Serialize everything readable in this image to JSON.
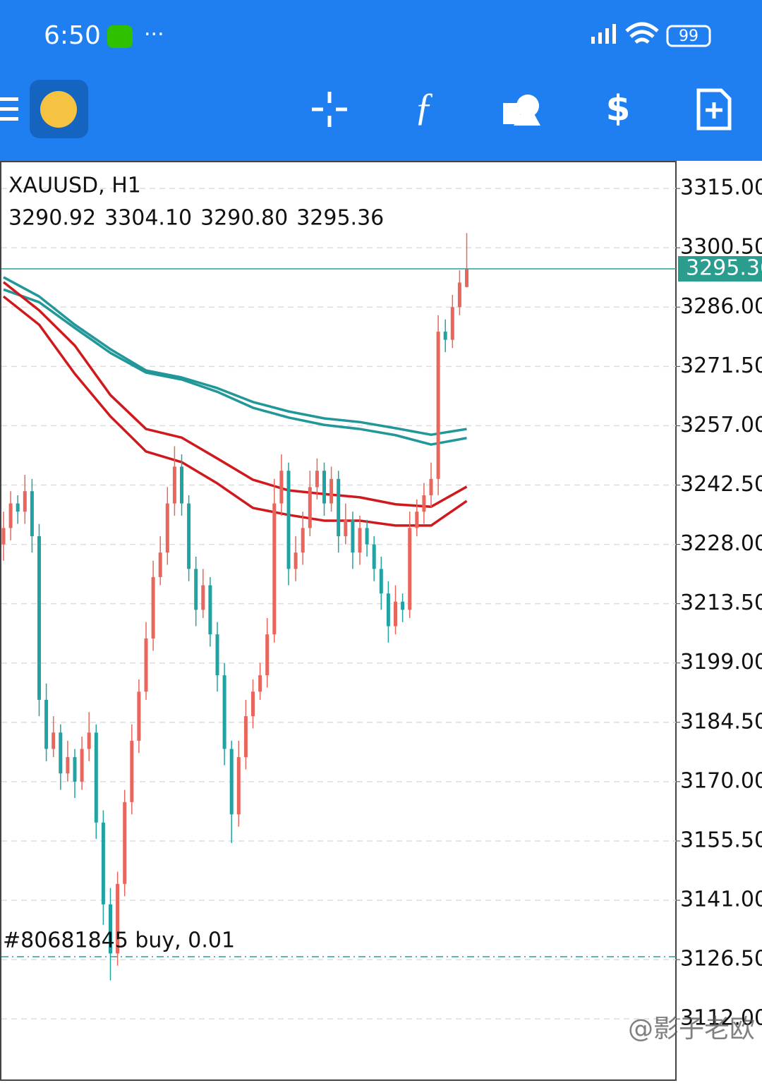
{
  "status_bar": {
    "time": "6:50",
    "battery": "99"
  },
  "chart_data": {
    "type": "candlestick",
    "title": "XAUUSD, H1",
    "header_values": [
      "3290.92",
      "3304.10",
      "3290.80",
      "3295.36"
    ],
    "up_color": "#e8665c",
    "down_color": "#22a3a3",
    "open": [
      3228,
      3232,
      3238,
      3236,
      3241,
      3230,
      3190,
      3178,
      3182,
      3172,
      3176,
      3170,
      3178,
      3182,
      3160,
      3140,
      3128,
      3145,
      3165,
      3180,
      3192,
      3205,
      3220,
      3226,
      3238,
      3247,
      3238,
      3222,
      3212,
      3218,
      3206,
      3196,
      3178,
      3162,
      3176,
      3186,
      3192,
      3196,
      3206,
      3238,
      3246,
      3222,
      3226,
      3232,
      3242,
      3246,
      3238,
      3244,
      3230,
      3234,
      3226,
      3232,
      3228,
      3222,
      3216,
      3208,
      3214,
      3212,
      3232,
      3236,
      3240,
      3244,
      3280,
      3278,
      3286,
      3290.92
    ],
    "high": [
      3236,
      3241,
      3240,
      3245,
      3244,
      3233,
      3194,
      3186,
      3184,
      3180,
      3178,
      3181,
      3187,
      3184,
      3163,
      3144,
      3148,
      3168,
      3184,
      3195,
      3209,
      3224,
      3230,
      3242,
      3252,
      3250,
      3240,
      3225,
      3222,
      3220,
      3209,
      3199,
      3180,
      3180,
      3190,
      3195,
      3199,
      3210,
      3244,
      3250,
      3248,
      3230,
      3236,
      3246,
      3249,
      3248,
      3247,
      3246,
      3238,
      3236,
      3235,
      3234,
      3230,
      3225,
      3219,
      3218,
      3216,
      3236,
      3239,
      3243,
      3248,
      3284,
      3283,
      3289,
      3295,
      3304.1
    ],
    "low": [
      3224,
      3229,
      3233,
      3233,
      3226,
      3186,
      3175,
      3176,
      3168,
      3170,
      3166,
      3168,
      3175,
      3156,
      3135,
      3121.4,
      3125,
      3142,
      3162,
      3177,
      3190,
      3202,
      3218,
      3223,
      3235,
      3235,
      3219,
      3208,
      3210,
      3203,
      3192,
      3174,
      3155,
      3159,
      3173,
      3183,
      3190,
      3193,
      3204,
      3235,
      3218,
      3219,
      3223,
      3230,
      3239,
      3235,
      3236,
      3226,
      3228,
      3222,
      3223,
      3225,
      3219,
      3212,
      3204,
      3206,
      3209,
      3210,
      3230,
      3233,
      3237,
      3240,
      3275,
      3276,
      3284,
      3290.8
    ],
    "close": [
      3232,
      3238,
      3236,
      3241,
      3230,
      3190,
      3178,
      3182,
      3172,
      3176,
      3170,
      3178,
      3182,
      3160,
      3140,
      3128,
      3145,
      3165,
      3180,
      3192,
      3205,
      3220,
      3226,
      3238,
      3247,
      3238,
      3222,
      3212,
      3218,
      3206,
      3196,
      3178,
      3162,
      3176,
      3186,
      3192,
      3196,
      3206,
      3238,
      3246,
      3222,
      3226,
      3232,
      3242,
      3246,
      3238,
      3244,
      3230,
      3234,
      3226,
      3232,
      3228,
      3222,
      3216,
      3208,
      3214,
      3212,
      3232,
      3236,
      3240,
      3244,
      3280,
      3278,
      3286,
      3292,
      3295.36
    ],
    "lines": [
      {
        "color": "#22979a",
        "x": [
          0,
          5,
          10,
          15,
          20,
          25,
          30,
          35,
          40,
          45,
          50,
          55,
          60,
          65
        ],
        "values": [
          3293.3,
          3288.6,
          3281.7,
          3275.7,
          3270.5,
          3268.8,
          3266.2,
          3262.8,
          3260.5,
          3258.8,
          3257.9,
          3256.4,
          3254.8,
          3256.2
        ]
      },
      {
        "color": "#22979a",
        "x": [
          0,
          5,
          10,
          15,
          20,
          25,
          30,
          35,
          40,
          45,
          50,
          55,
          60,
          65
        ],
        "values": [
          3290.3,
          3287.2,
          3280.9,
          3274.8,
          3270,
          3268.3,
          3265.3,
          3261.4,
          3259,
          3257.2,
          3256.2,
          3254.7,
          3252.4,
          3254
        ]
      },
      {
        "color": "#d0191c",
        "x": [
          0,
          5,
          10,
          15,
          20,
          25,
          30,
          35,
          40,
          45,
          50,
          55,
          60,
          65
        ],
        "values": [
          3292.1,
          3285.2,
          3276.6,
          3264.5,
          3256.2,
          3254.1,
          3249,
          3243.8,
          3241.2,
          3240.3,
          3239.5,
          3237.8,
          3237.2,
          3242.1
        ]
      },
      {
        "color": "#d0191c",
        "x": [
          0,
          5,
          10,
          15,
          20,
          25,
          30,
          35,
          40,
          45,
          50,
          55,
          60,
          65
        ],
        "values": [
          3288.6,
          3281.7,
          3269.7,
          3259.3,
          3250.7,
          3248.1,
          3242.9,
          3236.9,
          3235.2,
          3233.8,
          3233.8,
          3232.6,
          3232.6,
          3238.6
        ]
      }
    ],
    "order": {
      "label": "#80681845 buy, 0.01",
      "price": 3127.2
    },
    "ylim": [
      3097.2,
      3321.4
    ],
    "yticks": [
      {
        "value": 3315,
        "label": "3315.00"
      },
      {
        "value": 3300.5,
        "label": "3300.50"
      },
      {
        "value": 3286,
        "label": "3286.00"
      },
      {
        "value": 3271.5,
        "label": "3271.50"
      },
      {
        "value": 3257,
        "label": "3257.00"
      },
      {
        "value": 3242.5,
        "label": "3242.50"
      },
      {
        "value": 3228,
        "label": "3228.00"
      },
      {
        "value": 3213.5,
        "label": "3213.50"
      },
      {
        "value": 3199,
        "label": "3199.00"
      },
      {
        "value": 3184.5,
        "label": "3184.50"
      },
      {
        "value": 3170,
        "label": "3170.00"
      },
      {
        "value": 3155.5,
        "label": "3155.50"
      },
      {
        "value": 3141,
        "label": "3141.00"
      },
      {
        "value": 3126.5,
        "label": "3126.50"
      },
      {
        "value": 3112,
        "label": "3112.00"
      }
    ],
    "grid": true
  },
  "watermark": "@影子老欧"
}
